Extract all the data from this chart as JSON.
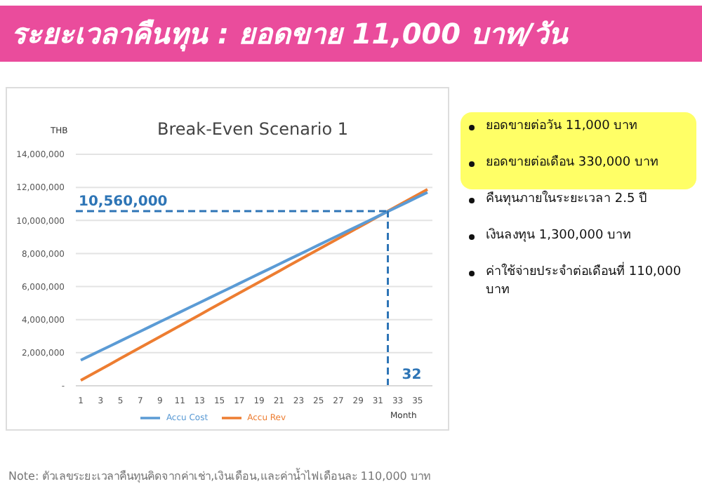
{
  "chart_data": {
    "type": "line",
    "title": "ระยะเวลาคืนทุน : ยอดขาย 11,000 บาท/วัน",
    "subtitle": "Break-Even Scenario 1",
    "ylabel": "THB",
    "xlabel": "Month",
    "x": [
      1,
      2,
      3,
      4,
      5,
      6,
      7,
      8,
      9,
      10,
      11,
      12,
      13,
      14,
      15,
      16,
      17,
      18,
      19,
      20,
      21,
      22,
      23,
      24,
      25,
      26,
      27,
      28,
      29,
      30,
      31,
      32,
      33,
      34,
      35,
      36
    ],
    "series": [
      {
        "name": "Accu Rev",
        "color": "#ed7d31",
        "values": [
          330000,
          660000,
          990000,
          1320000,
          1650000,
          1980000,
          2310000,
          2640000,
          2970000,
          3300000,
          3630000,
          3960000,
          4290000,
          4620000,
          4950000,
          5280000,
          5610000,
          5940000,
          6270000,
          6600000,
          6930000,
          7260000,
          7590000,
          7920000,
          8250000,
          8580000,
          8910000,
          9240000,
          9570000,
          9900000,
          10230000,
          10560000,
          10890000,
          11220000,
          11550000,
          11880000
        ]
      },
      {
        "name": "Accu Cost",
        "color": "#5b9bd5",
        "values": [
          1550000,
          1840000,
          2130000,
          2420000,
          2710000,
          3000000,
          3290000,
          3580000,
          3870000,
          4160000,
          4450000,
          4740000,
          5030000,
          5320000,
          5610000,
          5900000,
          6190000,
          6480000,
          6770000,
          7060000,
          7350000,
          7640000,
          7930000,
          8220000,
          8510000,
          8800000,
          9090000,
          9380000,
          9670000,
          9960000,
          10250000,
          10540000,
          10830000,
          11120000,
          11410000,
          11700000
        ]
      }
    ],
    "xlim": [
      0.5,
      36.5
    ],
    "xticks": [
      1,
      3,
      5,
      7,
      9,
      11,
      13,
      15,
      17,
      19,
      21,
      23,
      25,
      27,
      29,
      31,
      33,
      35
    ],
    "ylim": [
      0,
      14000000
    ],
    "yticks": [
      {
        "value": 0,
        "label": "-"
      },
      {
        "value": 2000000,
        "label": "2,000,000"
      },
      {
        "value": 4000000,
        "label": "4,000,000"
      },
      {
        "value": 6000000,
        "label": "6,000,000"
      },
      {
        "value": 8000000,
        "label": "8,000,000"
      },
      {
        "value": 10000000,
        "label": "10,000,000"
      },
      {
        "value": 12000000,
        "label": "12,000,000"
      },
      {
        "value": 14000000,
        "label": "14,000,000"
      }
    ],
    "grid": "y",
    "legend": "bottom",
    "marker": "none",
    "line_style": "solid",
    "ref_lines": [
      {
        "axis": "y",
        "value": 10560000,
        "label": "10,560,000",
        "color": "#2e75b6",
        "line_style": "dashed"
      },
      {
        "axis": "x",
        "value": 32,
        "label": "32",
        "color": "#2e75b6",
        "line_style": "dashed"
      }
    ],
    "annotations": [
      "ยอดขายต่อวัน 11,000 บาท",
      "ยอดขายต่อเดือน 330,000 บาท",
      "คืนทุนภายในระยะเวลา 2.5 ปี",
      "เงินลงทุน 1,300,000 บาท",
      "ค่าใช้จ่ายประจำต่อเดือนที่ 110,000 บาท",
      "Note: ตัวเลขระยะเวลาคืนทุนคิดจากค่าเช่า,เงินเดือน,และค่าน้ำไฟเดือนละ 110,000 บาท"
    ]
  }
}
